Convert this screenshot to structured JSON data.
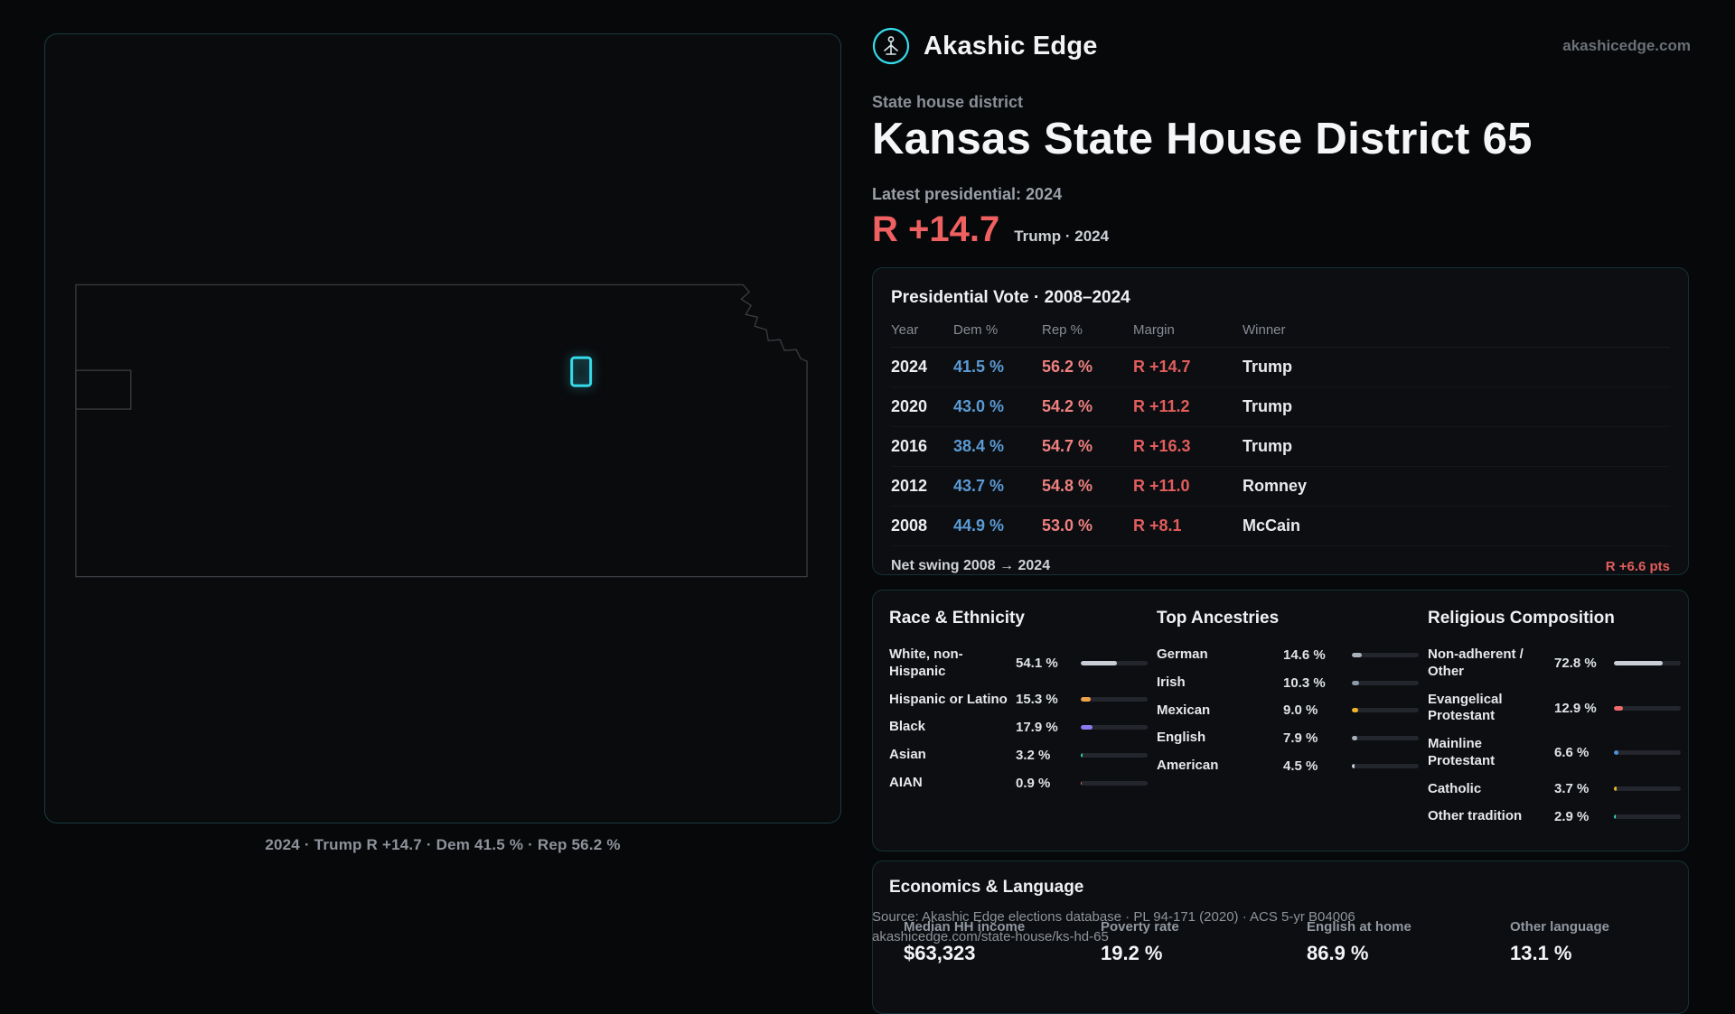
{
  "brand": {
    "name": "Akashic Edge",
    "domain": "akashicedge.com",
    "logo_icon": "akashic-edge-logo-icon",
    "accent_color": "#35dbeb"
  },
  "header": {
    "kicker": "State house district",
    "title": "Kansas State House District 65",
    "latest_label": "Latest presidential: 2024",
    "margin_value": "R +14.7",
    "margin_context": "Trump · 2024"
  },
  "map": {
    "caption": "2024 · Trump R +14.7 · Dem 41.5 % · Rep 56.2 %",
    "highlight_color": "#35dbeb"
  },
  "vote": {
    "title": "Presidential Vote · 2008–2024",
    "columns": [
      "Year",
      "Dem %",
      "Rep %",
      "Margin",
      "Winner"
    ],
    "rows": [
      {
        "year": "2024",
        "dem": "41.5 %",
        "rep": "56.2 %",
        "margin": "R +14.7",
        "winner": "Trump"
      },
      {
        "year": "2020",
        "dem": "43.0 %",
        "rep": "54.2 %",
        "margin": "R +11.2",
        "winner": "Trump"
      },
      {
        "year": "2016",
        "dem": "38.4 %",
        "rep": "54.7 %",
        "margin": "R +16.3",
        "winner": "Trump"
      },
      {
        "year": "2012",
        "dem": "43.7 %",
        "rep": "54.8 %",
        "margin": "R +11.0",
        "winner": "Romney"
      },
      {
        "year": "2008",
        "dem": "44.9 %",
        "rep": "53.0 %",
        "margin": "R +8.1",
        "winner": "McCain"
      }
    ],
    "net_swing_label": "Net swing 2008 → 2024",
    "net_swing_value": "R +6.6 pts"
  },
  "demographics": {
    "race": {
      "title": "Race & Ethnicity",
      "rows": [
        {
          "label": "White, non-Hispanic",
          "value": "54.1 %",
          "pct": 54.1,
          "color": "#c9ced6"
        },
        {
          "label": "Hispanic or Latino",
          "value": "15.3 %",
          "pct": 15.3,
          "color": "#f0a24a"
        },
        {
          "label": "Black",
          "value": "17.9 %",
          "pct": 17.9,
          "color": "#8b7bf0"
        },
        {
          "label": "Asian",
          "value": "3.2 %",
          "pct": 3.2,
          "color": "#34d399"
        },
        {
          "label": "AIAN",
          "value": "0.9 %",
          "pct": 0.9,
          "color": "#ef6b6b"
        }
      ]
    },
    "ancestries": {
      "title": "Top Ancestries",
      "rows": [
        {
          "label": "German",
          "value": "14.6 %",
          "pct": 14.6,
          "color": "#aab1bb"
        },
        {
          "label": "Irish",
          "value": "10.3 %",
          "pct": 10.3,
          "color": "#8d99a8"
        },
        {
          "label": "Mexican",
          "value": "9.0 %",
          "pct": 9.0,
          "color": "#f0b429"
        },
        {
          "label": "English",
          "value": "7.9 %",
          "pct": 7.9,
          "color": "#aab1bb"
        },
        {
          "label": "American",
          "value": "4.5 %",
          "pct": 4.5,
          "color": "#c9ced6"
        }
      ]
    },
    "religion": {
      "title": "Religious Composition",
      "rows": [
        {
          "label": "Non-adherent / Other",
          "value": "72.8 %",
          "pct": 72.8,
          "color": "#c9ced6"
        },
        {
          "label": "Evangelical Protestant",
          "value": "12.9 %",
          "pct": 12.9,
          "color": "#ef6b6b"
        },
        {
          "label": "Mainline Protestant",
          "value": "6.6 %",
          "pct": 6.6,
          "color": "#4f8fd9"
        },
        {
          "label": "Catholic",
          "value": "3.7 %",
          "pct": 3.7,
          "color": "#f0b429"
        },
        {
          "label": "Other tradition",
          "value": "2.9 %",
          "pct": 2.9,
          "color": "#2fd6b8"
        }
      ]
    }
  },
  "economics": {
    "title": "Economics & Language",
    "stats": [
      {
        "label": "Median HH income",
        "value": "$63,323"
      },
      {
        "label": "Poverty rate",
        "value": "19.2 %"
      },
      {
        "label": "English at home",
        "value": "86.9 %"
      },
      {
        "label": "Other language",
        "value": "13.1 %"
      }
    ]
  },
  "footer": {
    "line1": "Source: Akashic Edge elections database · PL 94-171 (2020) · ACS 5-yr B04006",
    "line2": "akashicedge.com/state-house/ks-hd-65"
  },
  "colors": {
    "dem": "#5b9bd5",
    "rep": "#ef8080",
    "margin": "#e25d5d",
    "accent": "#35dbeb"
  }
}
